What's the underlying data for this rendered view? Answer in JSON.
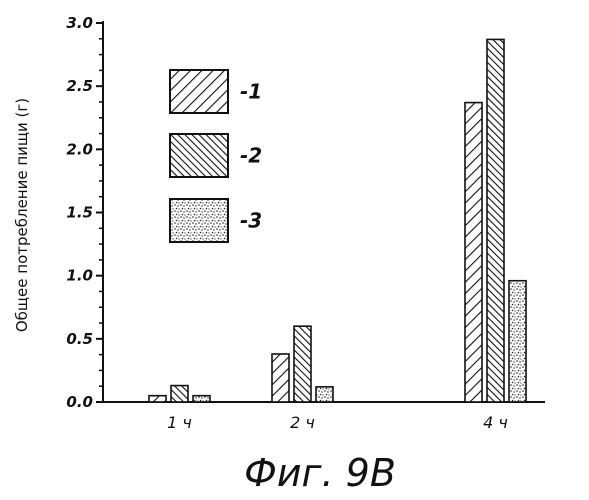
{
  "chart_data": {
    "type": "bar",
    "ylabel": "Общее потребление пищи (г)",
    "xlabel": "",
    "ylim": [
      0,
      3.0
    ],
    "yticks": [
      "0.0",
      "0.5",
      "1.0",
      "1.5",
      "2.0",
      "2.5",
      "3.0"
    ],
    "categories": [
      "1 ч",
      "2 ч",
      "4 ч"
    ],
    "series": [
      {
        "name": "-1",
        "pattern": "hatch-forward",
        "values": [
          0.05,
          0.38,
          2.37
        ]
      },
      {
        "name": "-2",
        "pattern": "hatch-back",
        "values": [
          0.13,
          0.6,
          2.87
        ]
      },
      {
        "name": "-3",
        "pattern": "stipple",
        "values": [
          0.05,
          0.12,
          0.96
        ]
      }
    ],
    "grid": false,
    "legend_position": "top-left"
  },
  "caption": "Фиг. 9B"
}
